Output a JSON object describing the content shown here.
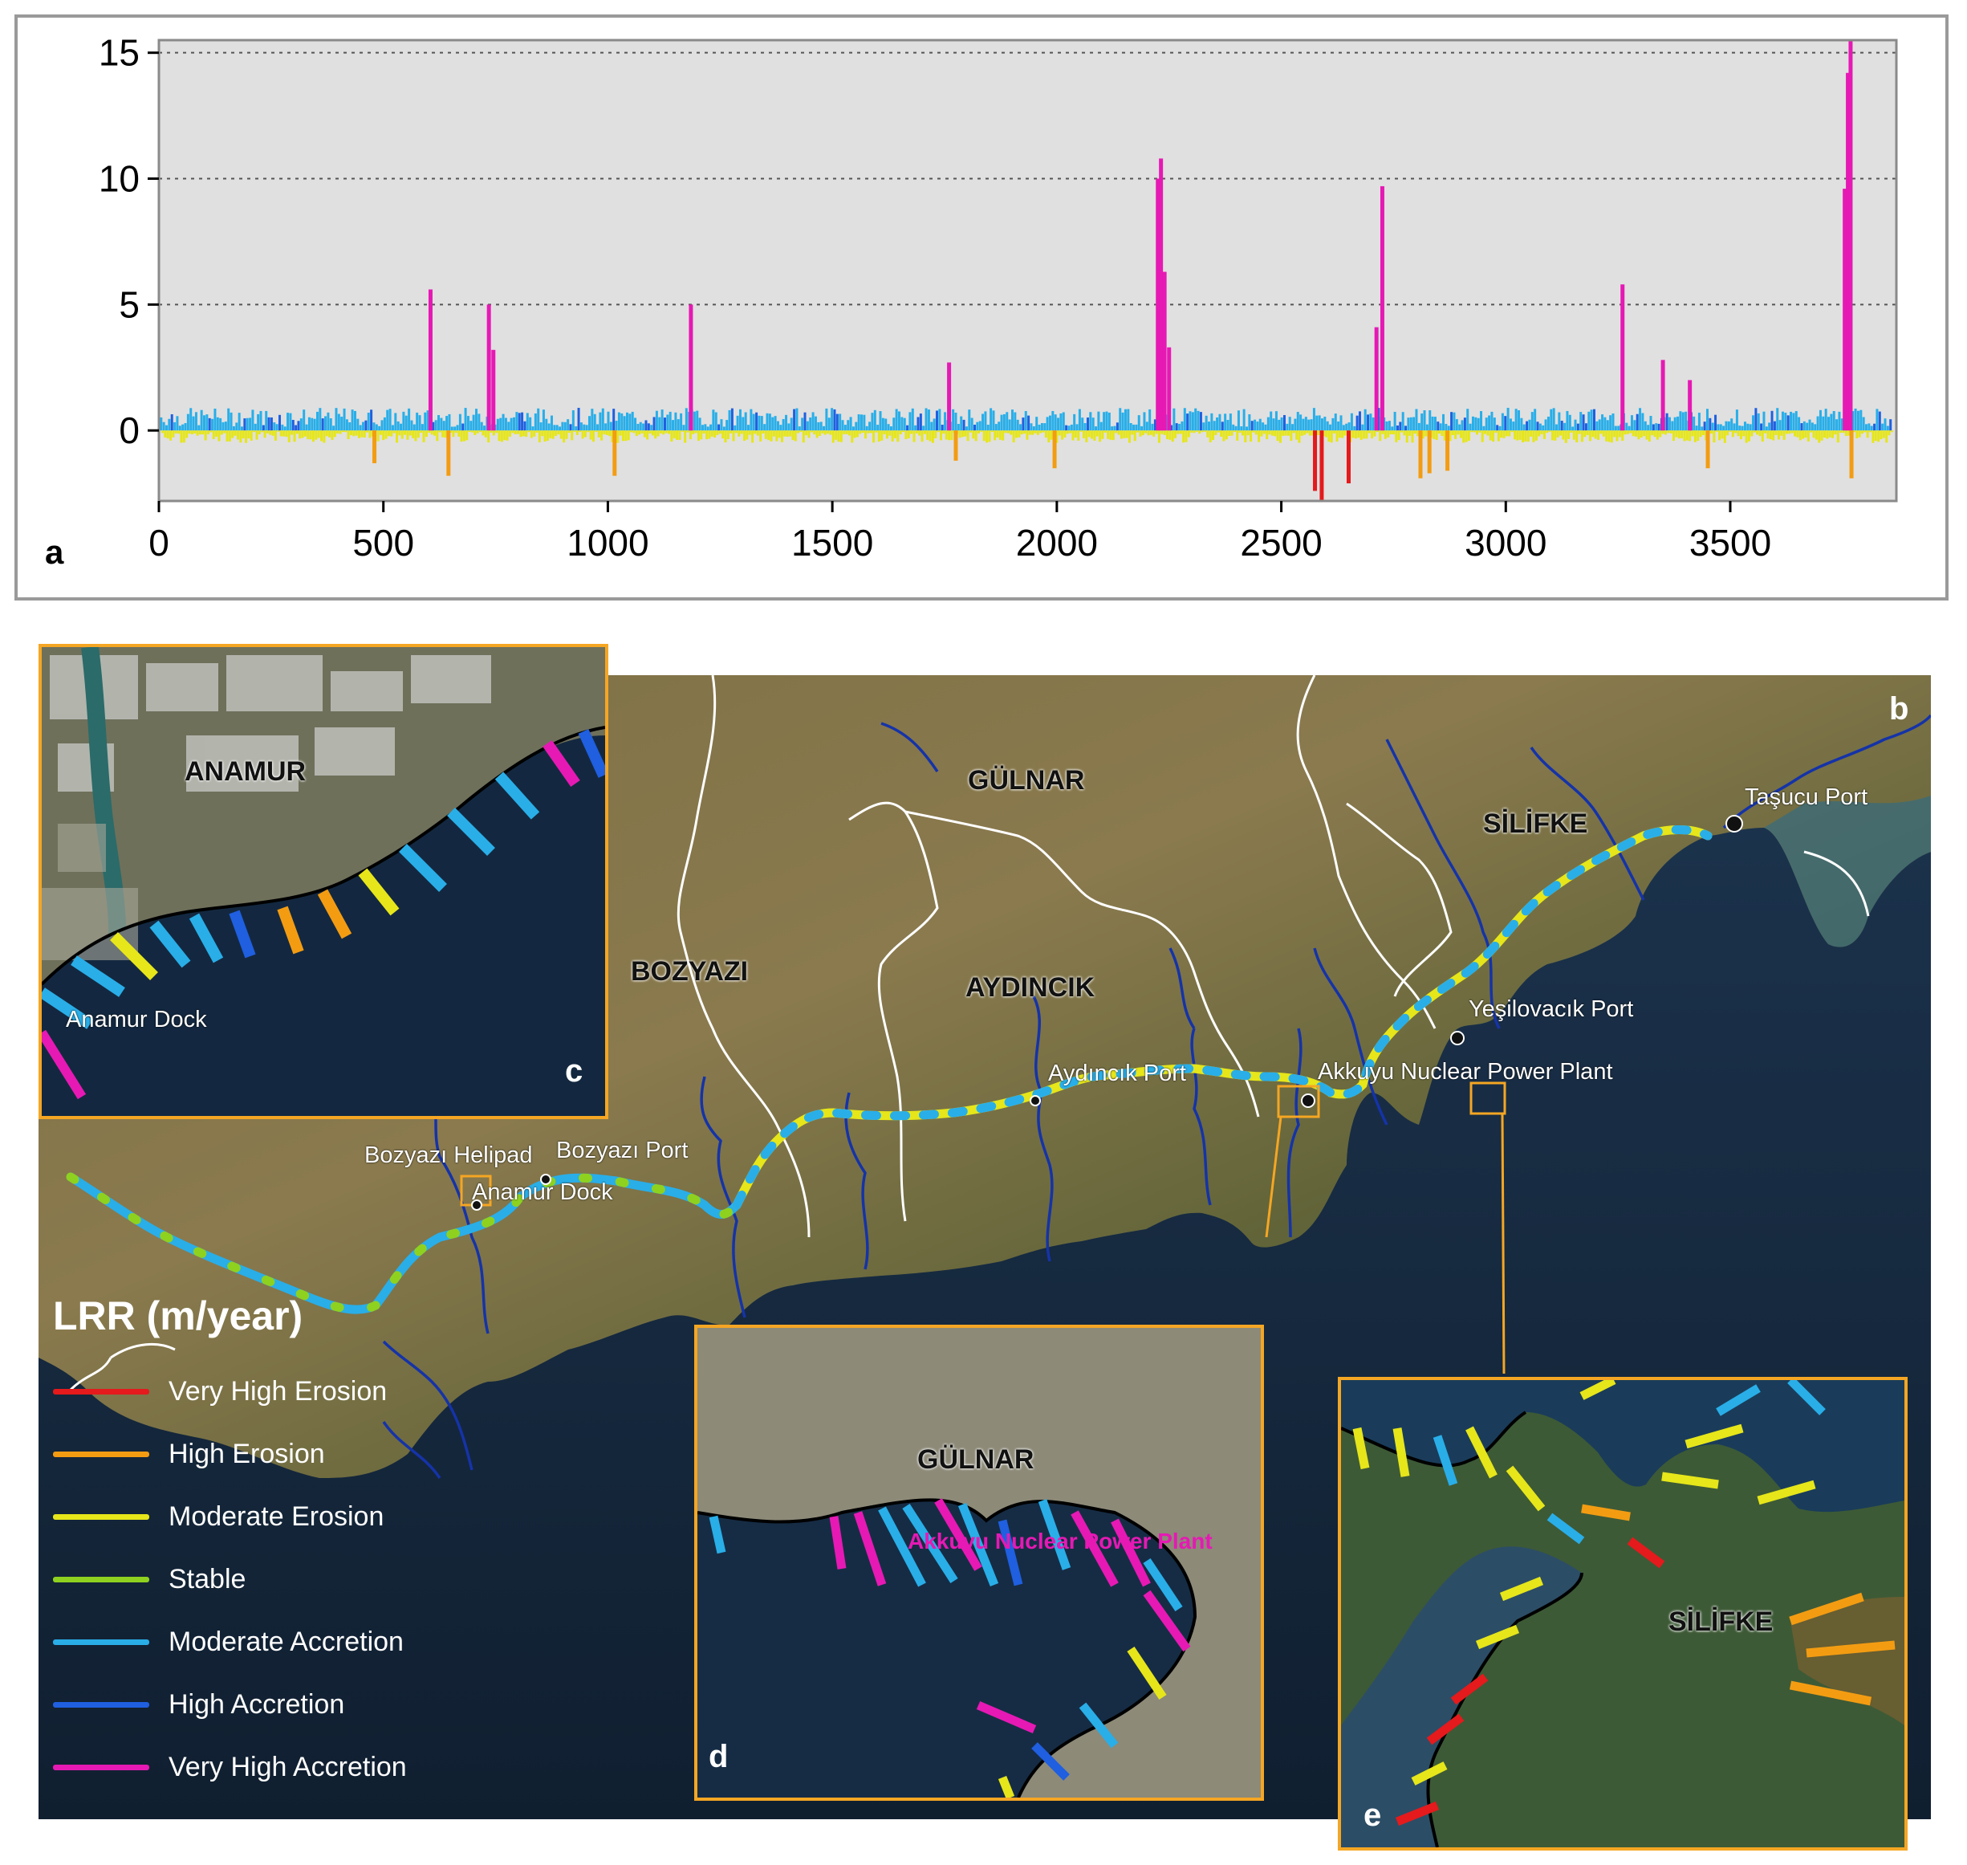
{
  "panel_letters": {
    "a": "a",
    "b": "b",
    "c": "c",
    "d": "d",
    "e": "e"
  },
  "chart_data": {
    "type": "bar",
    "x_ticks": [
      0,
      500,
      1000,
      1500,
      2000,
      2500,
      3000,
      3500
    ],
    "y_ticks": [
      0,
      5,
      10,
      15
    ],
    "xlim": [
      0,
      3870
    ],
    "ylim": [
      -2.8,
      15.5
    ],
    "grid": "horizontal dotted at 5, 10, 15",
    "background": "#e0e0e0",
    "spikes_positive": [
      {
        "x": 605,
        "value": 5.6,
        "class": "very-high-accretion"
      },
      {
        "x": 735,
        "value": 5.0,
        "class": "very-high-accretion"
      },
      {
        "x": 745,
        "value": 3.2,
        "class": "very-high-accretion"
      },
      {
        "x": 1185,
        "value": 5.0,
        "class": "very-high-accretion"
      },
      {
        "x": 1760,
        "value": 2.7,
        "class": "very-high-accretion"
      },
      {
        "x": 2225,
        "value": 10.0,
        "class": "very-high-accretion"
      },
      {
        "x": 2232,
        "value": 10.8,
        "class": "very-high-accretion"
      },
      {
        "x": 2240,
        "value": 6.3,
        "class": "very-high-accretion"
      },
      {
        "x": 2250,
        "value": 3.3,
        "class": "very-high-accretion"
      },
      {
        "x": 2712,
        "value": 4.1,
        "class": "very-high-accretion"
      },
      {
        "x": 2725,
        "value": 9.7,
        "class": "very-high-accretion"
      },
      {
        "x": 3260,
        "value": 5.8,
        "class": "very-high-accretion"
      },
      {
        "x": 3350,
        "value": 2.8,
        "class": "very-high-accretion"
      },
      {
        "x": 3410,
        "value": 2.0,
        "class": "very-high-accretion"
      },
      {
        "x": 3755,
        "value": 9.6,
        "class": "very-high-accretion"
      },
      {
        "x": 3762,
        "value": 14.2,
        "class": "very-high-accretion"
      },
      {
        "x": 3768,
        "value": 15.5,
        "class": "very-high-accretion"
      }
    ],
    "spikes_negative": [
      {
        "x": 480,
        "value": -1.3,
        "class": "high-erosion"
      },
      {
        "x": 645,
        "value": -1.8,
        "class": "high-erosion"
      },
      {
        "x": 1015,
        "value": -1.8,
        "class": "high-erosion"
      },
      {
        "x": 1775,
        "value": -1.2,
        "class": "high-erosion"
      },
      {
        "x": 1995,
        "value": -1.5,
        "class": "high-erosion"
      },
      {
        "x": 2575,
        "value": -2.4,
        "class": "very-high-erosion"
      },
      {
        "x": 2590,
        "value": -2.8,
        "class": "very-high-erosion"
      },
      {
        "x": 2650,
        "value": -2.1,
        "class": "very-high-erosion"
      },
      {
        "x": 2810,
        "value": -1.9,
        "class": "high-erosion"
      },
      {
        "x": 2830,
        "value": -1.7,
        "class": "high-erosion"
      },
      {
        "x": 2870,
        "value": -1.6,
        "class": "high-erosion"
      },
      {
        "x": 3450,
        "value": -1.5,
        "class": "high-erosion"
      },
      {
        "x": 3770,
        "value": -1.9,
        "class": "high-erosion"
      }
    ]
  },
  "map": {
    "districts": [
      "ANAMUR",
      "BOZYAZI",
      "GÜLNAR",
      "AYDINCIK",
      "SİLİFKE"
    ],
    "labels": {
      "bozyazi": "BOZYAZI",
      "gulnar": "GÜLNAR",
      "aydincik": "AYDINCIK",
      "silifke": "SİLİFKE",
      "tasucu_port": "Taşucu Port",
      "yesilovacik_port": "Yeşilovacık Port",
      "akkuyu_npp": "Akkuyu Nuclear Power Plant",
      "aydincik_port": "Aydıncık Port",
      "bozyazi_port": "Bozyazı Port",
      "bozyazi_helipad": "Bozyazı Helipad",
      "anamur_dock": "Anamur Dock"
    },
    "inset_c": {
      "district": "ANAMUR",
      "poi": "Anamur Dock"
    },
    "inset_d": {
      "district": "GÜLNAR",
      "poi": "Akkuyu Nuclear Power Plant"
    },
    "inset_e": {
      "district": "SİLİFKE"
    }
  },
  "legend": {
    "title": "LRR (m/year)",
    "items": [
      {
        "label": "Very High Erosion",
        "color": "#e41a1c"
      },
      {
        "label": "High Erosion",
        "color": "#f39c12"
      },
      {
        "label": "Moderate Erosion",
        "color": "#e6e61a"
      },
      {
        "label": "Stable",
        "color": "#8fd11f"
      },
      {
        "label": "Moderate Accretion",
        "color": "#29aee8"
      },
      {
        "label": "High Accretion",
        "color": "#1f5fe0"
      },
      {
        "label": "Very High Accretion",
        "color": "#e619b4"
      }
    ]
  },
  "colors": {
    "very_high_erosion": "#e41a1c",
    "high_erosion": "#f39c12",
    "moderate_erosion": "#e6e61a",
    "stable": "#8fd11f",
    "moderate_accretion": "#29aee8",
    "high_accretion": "#1f5fe0",
    "very_high_accretion": "#e619b4",
    "sea": "#152a40",
    "land": "#6e6a3c"
  }
}
